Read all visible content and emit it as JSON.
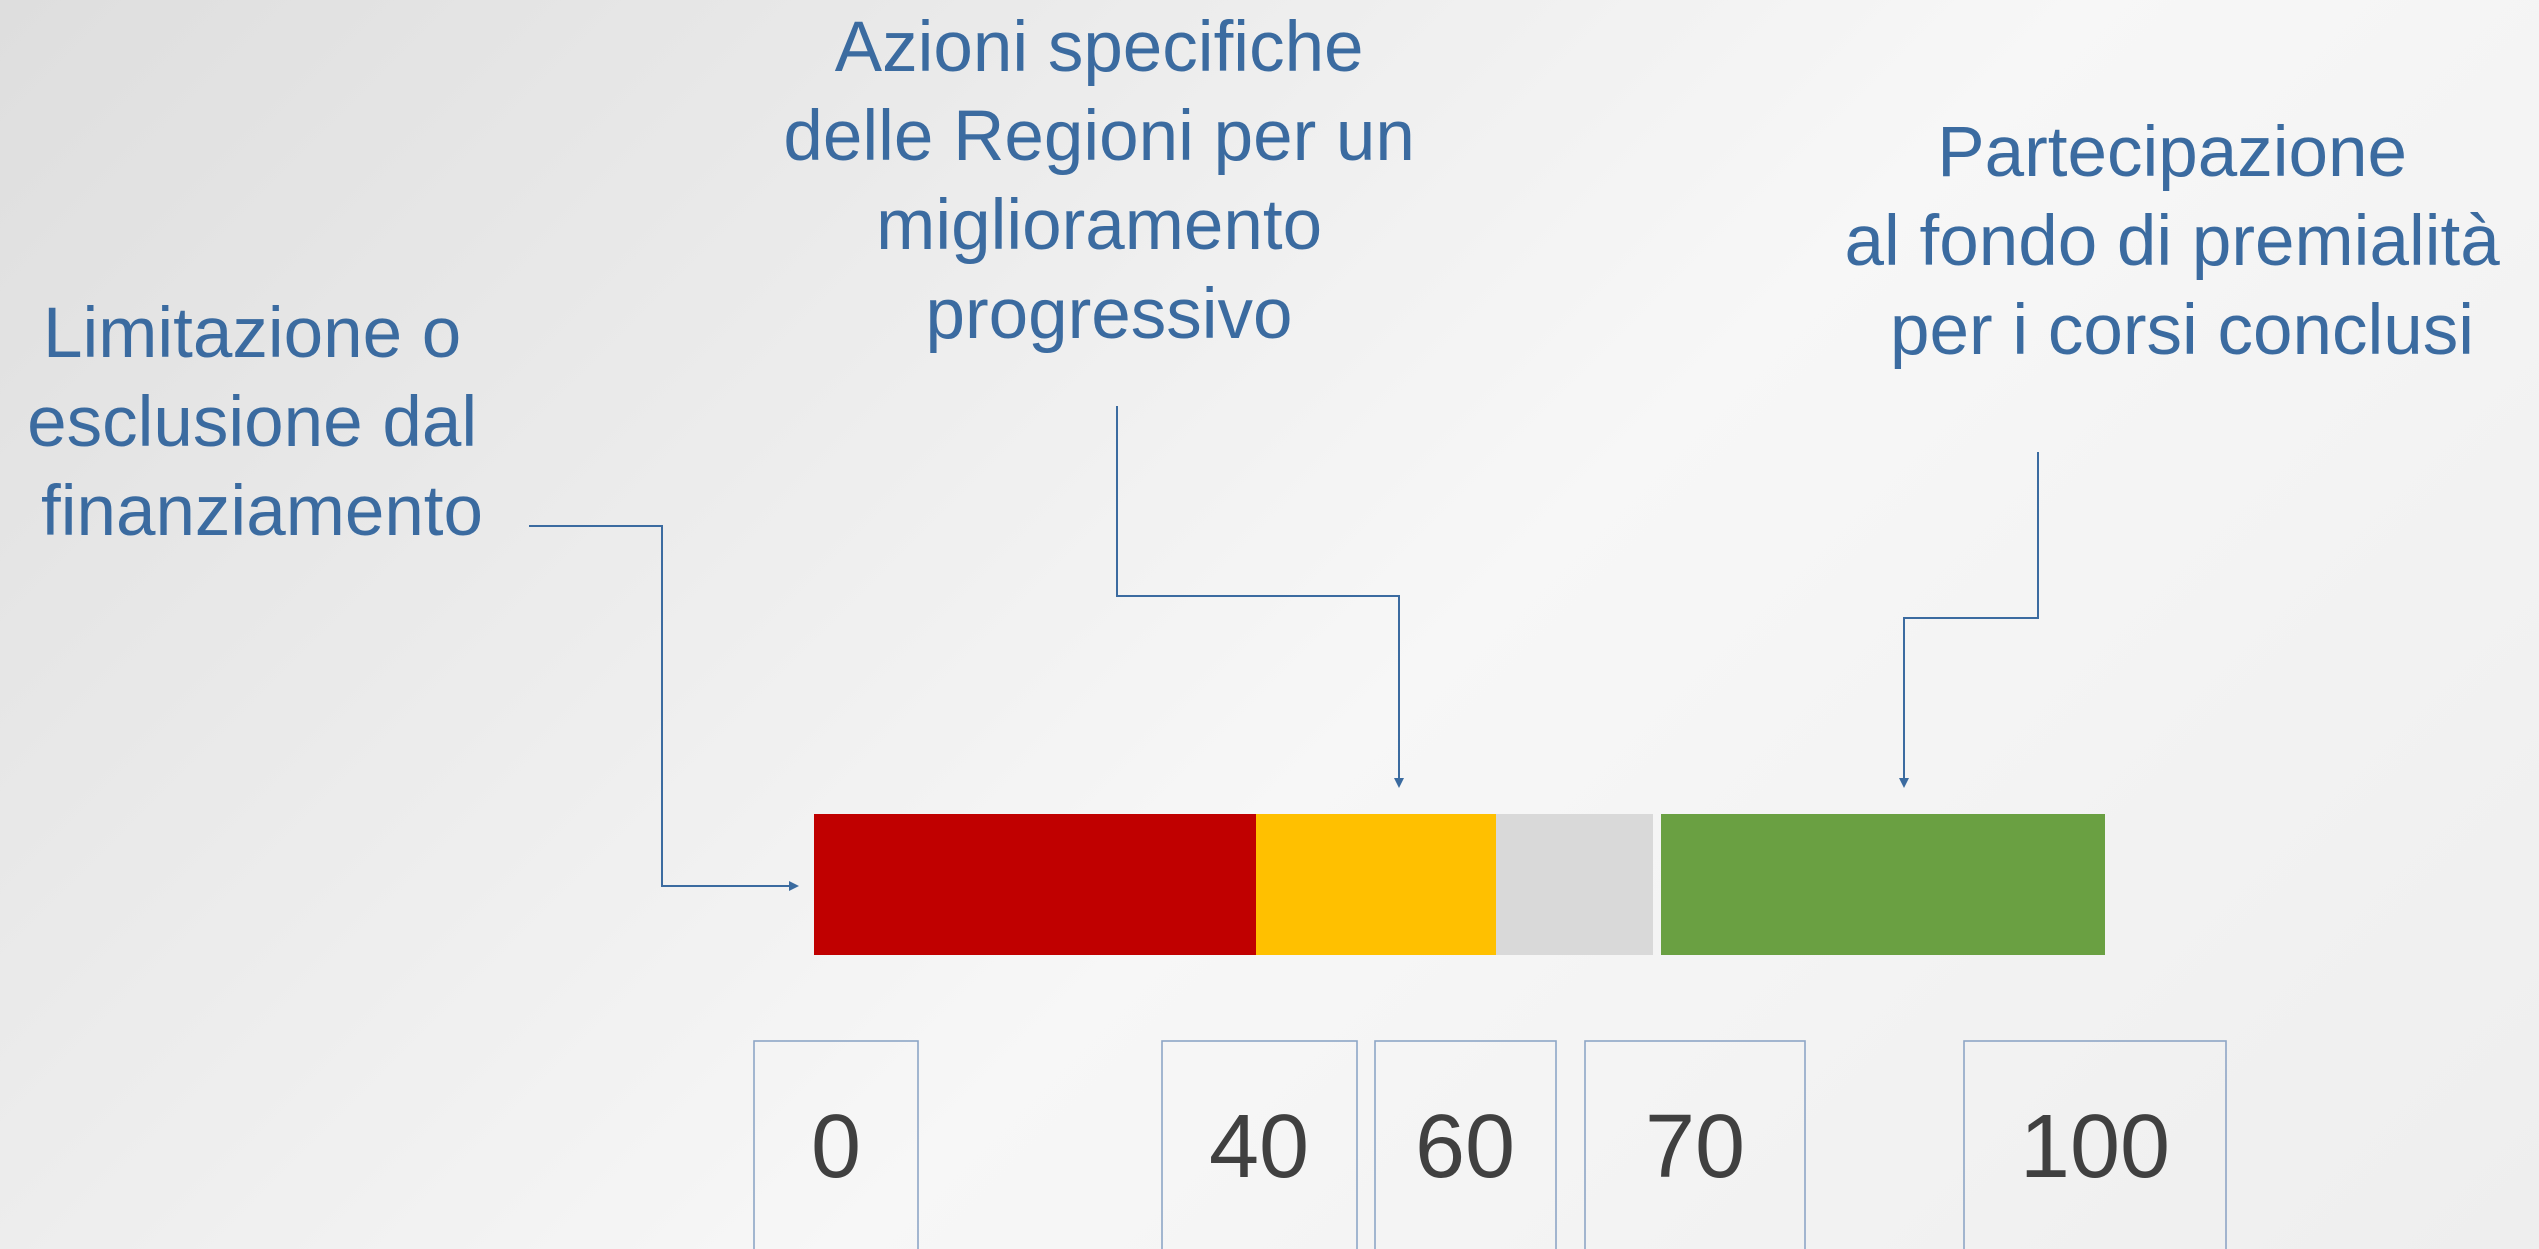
{
  "labels": [
    {
      "lines": [
        "Limitazione o",
        "esclusione dal",
        "finanziamento"
      ]
    },
    {
      "lines": [
        "Azioni specifiche",
        "delle Regioni per un",
        "miglioramento",
        "progressivo"
      ]
    },
    {
      "lines": [
        "Partecipazione",
        "al fondo di premialità",
        "per i corsi conclusi"
      ]
    }
  ],
  "scale": [
    0,
    40,
    60,
    70,
    100
  ]
}
